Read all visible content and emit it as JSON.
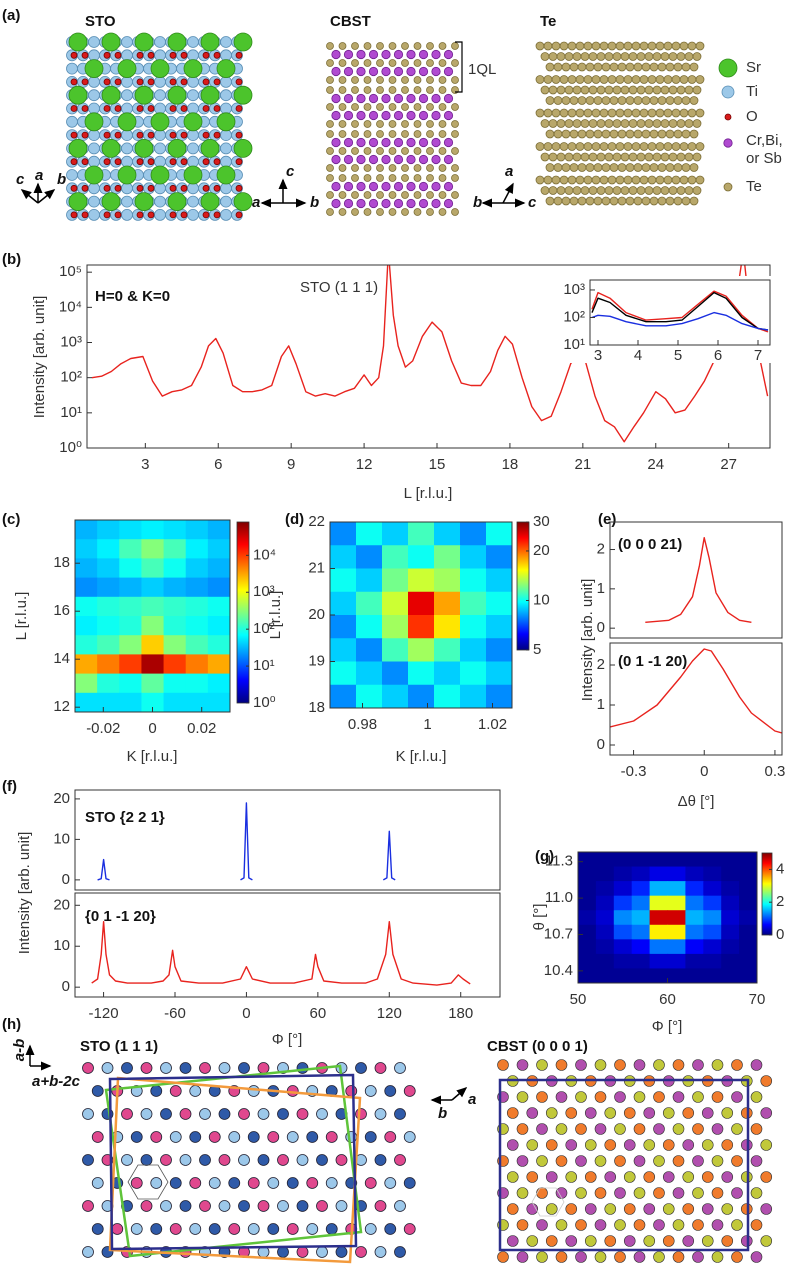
{
  "panel_labels": [
    "(a)",
    "(b)",
    "(c)",
    "(d)",
    "(e)",
    "(f)",
    "(g)",
    "(h)"
  ],
  "panel_a": {
    "structures": [
      "STO",
      "CBST",
      "Te"
    ],
    "ql": "1QL",
    "legend": [
      "Sr",
      "Ti",
      "O",
      "Cr,Bi,",
      "or Sb",
      "Te"
    ],
    "sto_axes": [
      "c",
      "a",
      "b"
    ],
    "cbst_axes": [
      "c",
      "a",
      "b"
    ],
    "te_axes": [
      "a",
      "b",
      "c"
    ]
  },
  "panel_h": {
    "titles": [
      "STO (1 1 1)",
      "CBST (0 0 0 1)"
    ],
    "sto_axes": [
      "a-b",
      "a+b-2c"
    ],
    "cbst_axes": [
      "a",
      "b"
    ]
  },
  "chart_data": [
    {
      "type": "line",
      "annotations": [
        "H=0 & K=0",
        "STO (1 1 1)"
      ],
      "x_label": "L [r.l.u.]",
      "y_label": "Intensity [arb. unit]",
      "ylog": true,
      "xlim": [
        0.6,
        28.7
      ],
      "ylim": [
        1,
        160000
      ],
      "xticks": [
        3,
        6,
        9,
        12,
        15,
        18,
        21,
        24,
        27
      ],
      "yticks": [
        {
          "value": 1,
          "label": "10⁰"
        },
        {
          "value": 10,
          "label": "10¹"
        },
        {
          "value": 100,
          "label": "10²"
        },
        {
          "value": 1000,
          "label": "10³"
        },
        {
          "value": 10000,
          "label": "10⁴"
        },
        {
          "value": 100000,
          "label": "10⁵"
        }
      ],
      "x": [
        0.8,
        1.2,
        1.6,
        2.0,
        2.4,
        2.9,
        3.3,
        3.7,
        4.1,
        4.5,
        4.9,
        5.3,
        5.6,
        5.9,
        6.2,
        6.6,
        7.0,
        7.4,
        7.8,
        8.2,
        8.6,
        8.9,
        9.2,
        9.6,
        10.0,
        10.4,
        10.8,
        11.2,
        11.6,
        12.0,
        12.3,
        12.6,
        12.8,
        13.0,
        13.2,
        13.4,
        13.7,
        14.0,
        14.4,
        14.8,
        15.2,
        15.6,
        16.0,
        16.4,
        16.8,
        17.2,
        17.5,
        17.8,
        18.1,
        18.5,
        18.9,
        19.3,
        19.7,
        20.1,
        20.5,
        20.8,
        21.1,
        21.5,
        21.9,
        22.3,
        22.7,
        23.1,
        23.5,
        24.0,
        24.4,
        24.8,
        25.2,
        25.6,
        26.0,
        26.4,
        26.8,
        27.2,
        27.6,
        28.0,
        28.3,
        28.6
      ],
      "series": [
        {
          "color": "#e8231e",
          "values": [
            100,
            110,
            150,
            250,
            350,
            400,
            80,
            30,
            40,
            45,
            60,
            200,
            800,
            1300,
            500,
            60,
            40,
            40,
            45,
            60,
            400,
            800,
            250,
            40,
            30,
            35,
            30,
            40,
            50,
            120,
            60,
            100,
            800,
            400000,
            6000,
            800,
            200,
            300,
            1500,
            3800,
            2000,
            300,
            70,
            60,
            60,
            150,
            600,
            1500,
            900,
            100,
            15,
            6,
            8,
            40,
            250,
            500,
            300,
            30,
            6,
            4,
            1.5,
            4,
            10,
            40,
            25,
            10,
            12,
            30,
            80,
            300,
            1000,
            5000,
            400000,
            1000,
            300,
            30
          ]
        }
      ]
    },
    {
      "type": "line",
      "ylog": true,
      "xlim": [
        2.8,
        7.3
      ],
      "ylim": [
        10,
        2300
      ],
      "xticks": [
        3,
        4,
        5,
        6,
        7
      ],
      "yticks": [
        {
          "value": 10,
          "label": "10¹"
        },
        {
          "value": 100,
          "label": "10²"
        },
        {
          "value": 1000,
          "label": "10³"
        }
      ],
      "x": [
        2.85,
        3.0,
        3.3,
        3.7,
        4.2,
        4.7,
        5.1,
        5.5,
        5.9,
        6.2,
        6.6,
        7.0,
        7.25
      ],
      "series": [
        {
          "color": "#e8231e",
          "values": [
            200,
            800,
            500,
            150,
            80,
            90,
            100,
            300,
            900,
            600,
            120,
            40,
            30
          ]
        },
        {
          "color": "#000000",
          "values": [
            150,
            500,
            350,
            120,
            70,
            70,
            80,
            250,
            800,
            500,
            100,
            40,
            35
          ]
        },
        {
          "color": "#1a2fe0",
          "values": [
            100,
            120,
            110,
            70,
            50,
            50,
            60,
            90,
            150,
            120,
            60,
            40,
            35
          ]
        }
      ]
    },
    {
      "type": "heatmap",
      "x_label": "K [r.l.u.]",
      "y_label": "L [r.l.u.]",
      "colormap": "jet",
      "zlog": true,
      "xlim": [
        -0.0315,
        0.0315
      ],
      "ylim": [
        11.8,
        19.8
      ],
      "xticks": [
        -0.02,
        0,
        0.02
      ],
      "yticks": [
        12,
        14,
        16,
        18
      ],
      "zlim": [
        1,
        80000
      ],
      "zticks": [
        {
          "value": 1,
          "label": "10⁰"
        },
        {
          "value": 10,
          "label": "10¹"
        },
        {
          "value": 100,
          "label": "10²"
        },
        {
          "value": 1000,
          "label": "10³"
        },
        {
          "value": 10000,
          "label": "10⁴"
        }
      ],
      "x": [
        -0.027,
        -0.018,
        -0.009,
        0,
        0.009,
        0.018,
        0.027
      ],
      "y": [
        19.4,
        18.6,
        17.8,
        17.0,
        16.2,
        15.4,
        14.6,
        13.8,
        13.0,
        12.2
      ],
      "z": [
        [
          30,
          40,
          50,
          60,
          50,
          40,
          30
        ],
        [
          40,
          60,
          150,
          300,
          150,
          60,
          40
        ],
        [
          30,
          40,
          80,
          150,
          80,
          40,
          30
        ],
        [
          20,
          25,
          30,
          40,
          30,
          25,
          20
        ],
        [
          80,
          100,
          120,
          150,
          120,
          100,
          80
        ],
        [
          60,
          80,
          100,
          300,
          100,
          80,
          60
        ],
        [
          100,
          150,
          300,
          2000,
          300,
          150,
          100
        ],
        [
          3000,
          5000,
          10000,
          50000,
          10000,
          5000,
          3000
        ],
        [
          300,
          100,
          80,
          200,
          80,
          80,
          60
        ],
        [
          50,
          50,
          50,
          80,
          50,
          50,
          50
        ]
      ]
    },
    {
      "type": "heatmap",
      "x_label": "K [r.l.u.]",
      "y_label": "L [r.l.u.]",
      "colormap": "jet",
      "zlog": true,
      "xlim": [
        0.97,
        1.026
      ],
      "ylim": [
        18,
        22
      ],
      "xticks": [
        0.98,
        1,
        1.02
      ],
      "yticks": [
        18,
        19,
        20,
        21,
        22
      ],
      "zlim": [
        5,
        30
      ],
      "zticks": [
        5,
        10,
        20,
        30
      ],
      "x": [
        0.974,
        0.982,
        0.99,
        0.998,
        1.006,
        1.014,
        1.022
      ],
      "y": [
        21.75,
        21.25,
        20.75,
        20.25,
        19.75,
        19.25,
        18.75,
        18.25
      ],
      "z": [
        [
          8,
          10,
          9,
          11,
          9,
          8,
          10
        ],
        [
          9,
          8,
          11,
          10,
          12,
          9,
          8
        ],
        [
          10,
          9,
          12,
          14,
          13,
          10,
          9
        ],
        [
          9,
          11,
          14,
          25,
          18,
          11,
          10
        ],
        [
          8,
          10,
          13,
          22,
          16,
          10,
          9
        ],
        [
          9,
          8,
          11,
          13,
          11,
          9,
          8
        ],
        [
          10,
          9,
          8,
          10,
          9,
          10,
          9
        ],
        [
          8,
          10,
          9,
          8,
          10,
          9,
          8
        ]
      ]
    },
    {
      "type": "line",
      "annotations": [
        "(0 0 0 21)"
      ],
      "y_label": "Intensity [arb. unit]",
      "xlim": [
        -0.4,
        0.33
      ],
      "ylim": [
        -0.25,
        2.7
      ],
      "yticks": [
        0,
        1,
        2
      ],
      "x": [
        -0.25,
        -0.15,
        -0.1,
        -0.05,
        -0.02,
        0,
        0.02,
        0.05,
        0.1,
        0.15,
        0.2
      ],
      "series": [
        {
          "color": "#e8231e",
          "values": [
            0.15,
            0.2,
            0.35,
            0.8,
            1.6,
            2.3,
            1.8,
            0.9,
            0.4,
            0.2,
            0.15
          ]
        }
      ]
    },
    {
      "type": "line",
      "annotations": [
        "(0 1 -1 20)"
      ],
      "x_label": "Δθ [°]",
      "xlim": [
        -0.4,
        0.33
      ],
      "ylim": [
        -0.25,
        2.55
      ],
      "xticks": [
        -0.3,
        0,
        0.3
      ],
      "yticks": [
        0,
        1,
        2
      ],
      "x": [
        -0.4,
        -0.3,
        -0.2,
        -0.1,
        -0.05,
        0,
        0.03,
        0.08,
        0.15,
        0.2,
        0.3,
        0.33
      ],
      "series": [
        {
          "color": "#e8231e",
          "values": [
            0.45,
            0.6,
            1.0,
            1.7,
            2.1,
            2.4,
            2.35,
            1.9,
            1.2,
            0.8,
            0.35,
            0.3
          ]
        }
      ]
    },
    {
      "type": "line",
      "annotations": [
        "STO {2 2 1}"
      ],
      "y_label": "Intensity [arb. unit]",
      "xlim": [
        -144,
        213
      ],
      "ylim": [
        -2.5,
        22.2
      ],
      "yticks": [
        0,
        10,
        20
      ],
      "x": [
        -125,
        -122,
        -120,
        -118,
        -115,
        -60,
        -5,
        -2,
        0,
        2,
        5,
        60,
        115,
        118,
        120,
        122,
        125
      ],
      "series": [
        {
          "color": "#1a2fe0",
          "values": [
            0,
            0.3,
            5,
            0.3,
            0,
            null,
            0,
            0.5,
            19,
            0.5,
            0,
            null,
            0,
            0.5,
            12,
            0.5,
            0
          ]
        }
      ]
    },
    {
      "type": "line",
      "annotations": [
        "{0 1 -1 20}"
      ],
      "x_label": "Φ [°]",
      "xlim": [
        -144,
        213
      ],
      "ylim": [
        -2.4,
        23
      ],
      "xticks": [
        -120,
        -60,
        0,
        60,
        120,
        180
      ],
      "yticks": [
        0,
        10,
        20
      ],
      "x": [
        -130,
        -125,
        -122,
        -120,
        -118,
        -115,
        -110,
        -100,
        -80,
        -70,
        -65,
        -62,
        -60,
        -55,
        -40,
        -20,
        -5,
        0,
        5,
        20,
        40,
        55,
        58,
        60,
        65,
        80,
        100,
        110,
        117,
        120,
        123,
        130,
        140,
        160,
        172,
        178,
        182,
        188
      ],
      "series": [
        {
          "color": "#e8231e",
          "values": [
            1,
            2,
            8,
            16,
            8,
            3,
            1.5,
            1,
            1,
            1.5,
            3,
            9,
            5,
            1.5,
            1,
            1,
            2,
            5,
            2,
            1,
            1,
            2,
            8,
            5,
            1.5,
            1,
            1,
            2,
            8,
            16,
            8,
            2,
            1,
            0.5,
            1,
            3,
            2,
            0.8
          ]
        }
      ]
    },
    {
      "type": "heatmap",
      "x_label": "Φ [°]",
      "y_label": "θ [°]",
      "colormap": "jet",
      "xlim": [
        50,
        70
      ],
      "ylim": [
        10.3,
        11.38
      ],
      "xticks": [
        50,
        60,
        70
      ],
      "yticks": [
        10.4,
        10.7,
        {
          "value": 11,
          "label": "11.0"
        },
        11.3
      ],
      "zlim": [
        0,
        5
      ],
      "zticks": [
        0,
        2,
        4
      ],
      "x": [
        51,
        53,
        55,
        57,
        59,
        61,
        63,
        65,
        67,
        69
      ],
      "y": [
        11.32,
        11.2,
        11.08,
        10.96,
        10.84,
        10.72,
        10.6,
        10.48,
        10.36
      ],
      "z": [
        [
          0.1,
          0.1,
          0.1,
          0.1,
          0.1,
          0.1,
          0.1,
          0.1,
          0.1,
          0.1
        ],
        [
          0.1,
          0.1,
          0.2,
          0.3,
          0.5,
          0.5,
          0.3,
          0.2,
          0.1,
          0.1
        ],
        [
          0.1,
          0.2,
          0.4,
          0.8,
          1.5,
          1.5,
          0.8,
          0.4,
          0.2,
          0.1
        ],
        [
          0.1,
          0.3,
          0.9,
          1.2,
          3.0,
          3.0,
          1.2,
          0.9,
          0.3,
          0.1
        ],
        [
          0.2,
          0.4,
          1.3,
          1.5,
          4.6,
          4.6,
          1.5,
          1.3,
          0.4,
          0.2
        ],
        [
          0.1,
          0.3,
          1.0,
          1.2,
          3.2,
          3.2,
          1.2,
          1.0,
          0.3,
          0.1
        ],
        [
          0.1,
          0.2,
          0.4,
          0.6,
          1.2,
          1.2,
          0.6,
          0.4,
          0.2,
          0.1
        ],
        [
          0.1,
          0.1,
          0.2,
          0.2,
          0.4,
          0.4,
          0.2,
          0.2,
          0.1,
          0.1
        ],
        [
          0.1,
          0.1,
          0.1,
          0.1,
          0.1,
          0.1,
          0.1,
          0.1,
          0.1,
          0.1
        ]
      ]
    }
  ]
}
